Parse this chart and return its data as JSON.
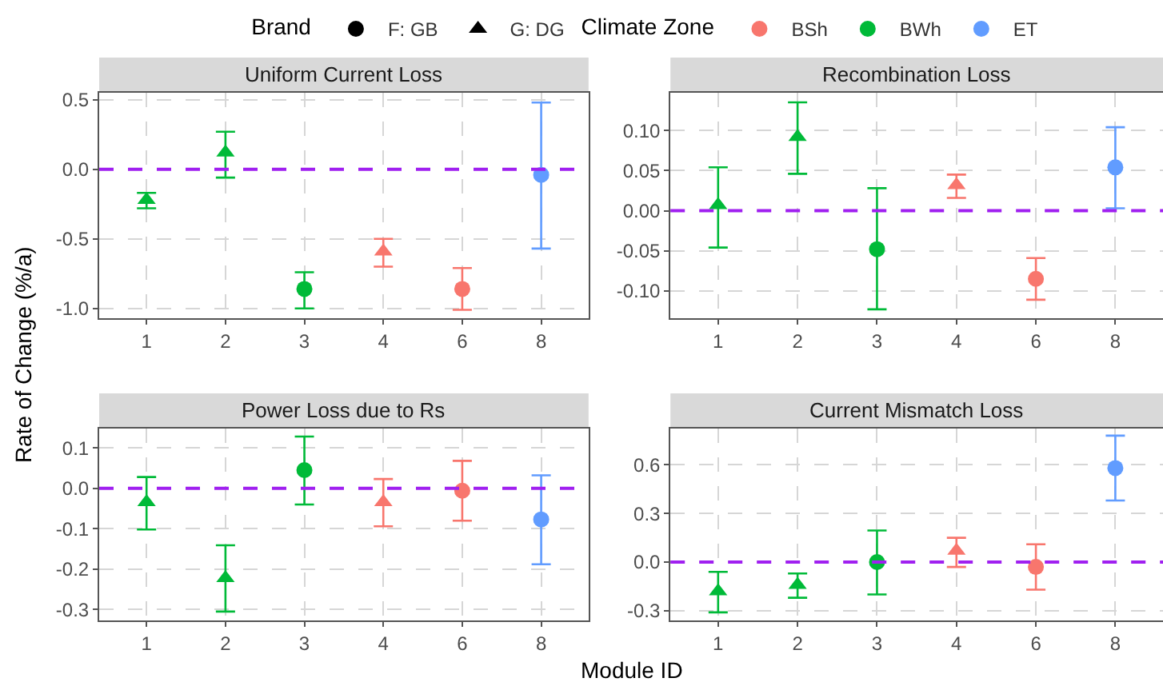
{
  "chart_data": [
    {
      "type": "scatter",
      "title": "Uniform Current Loss",
      "ylabel": "Rate of Change (%/a)",
      "categories": [
        "1",
        "2",
        "3",
        "4",
        "6",
        "8"
      ],
      "ylim": [
        -1.07,
        0.55
      ],
      "yticks": [
        {
          "value": -1,
          "label": "-1.0"
        },
        {
          "value": -0.5,
          "label": "-0.5"
        },
        {
          "value": 0,
          "label": "0.0"
        },
        {
          "value": 0.5,
          "label": "0.5"
        }
      ],
      "grid": true,
      "legend": "top",
      "legend_title": "Brand",
      "ref_lines": [
        {
          "axis": "y",
          "value": 0,
          "color": "#a020f0",
          "line_style": "dashed"
        }
      ],
      "series": [
        {
          "color": "#f8766d",
          "marker": "circle",
          "values": [
            null,
            null,
            null,
            null,
            -0.86,
            null
          ],
          "errors": [
            null,
            null,
            null,
            null,
            [
              -1.01,
              -0.71
            ],
            null
          ]
        },
        {
          "color": "#f8766d",
          "marker": "triangle",
          "values": [
            null,
            null,
            null,
            -0.59,
            null,
            null
          ],
          "errors": [
            null,
            null,
            null,
            [
              -0.7,
              -0.5
            ],
            null,
            null
          ]
        },
        {
          "color": "#00ba38",
          "marker": "circle",
          "values": [
            null,
            null,
            -0.86,
            null,
            null,
            null
          ],
          "errors": [
            null,
            null,
            [
              -1.0,
              -0.74
            ],
            null,
            null,
            null
          ]
        },
        {
          "color": "#00ba38",
          "marker": "triangle",
          "values": [
            -0.22,
            0.12,
            null,
            null,
            null,
            null
          ],
          "errors": [
            [
              -0.28,
              -0.17
            ],
            [
              -0.06,
              0.27
            ],
            null,
            null,
            null,
            null
          ]
        },
        {
          "color": "#619cff",
          "marker": "circle",
          "values": [
            null,
            null,
            null,
            null,
            null,
            -0.04
          ],
          "errors": [
            null,
            null,
            null,
            null,
            null,
            [
              -0.57,
              0.48
            ]
          ]
        },
        {
          "name": "F: GB",
          "color": "#000000",
          "marker": "circle",
          "values": [
            null,
            null,
            null,
            null,
            null,
            null
          ]
        },
        {
          "name": "G: DG",
          "color": "#000000",
          "marker": "triangle",
          "values": [
            null,
            null,
            null,
            null,
            null,
            null
          ]
        }
      ]
    },
    {
      "type": "scatter",
      "title": "Recombination Loss",
      "categories": [
        "1",
        "2",
        "3",
        "4",
        "6",
        "8"
      ],
      "ylim": [
        -0.134,
        0.147
      ],
      "yticks": [
        {
          "value": -0.1,
          "label": "-0.10"
        },
        {
          "value": -0.05,
          "label": "-0.05"
        },
        {
          "value": 0,
          "label": "0.00"
        },
        {
          "value": 0.05,
          "label": "0.05"
        },
        {
          "value": 0.1,
          "label": "0.10"
        }
      ],
      "grid": true,
      "legend": "top",
      "legend_title": "Climate Zone",
      "ref_lines": [
        {
          "axis": "y",
          "value": 0,
          "color": "#a020f0",
          "line_style": "dashed"
        }
      ],
      "series": [
        {
          "name": "BSh",
          "color": "#f8766d",
          "marker": "circle",
          "values": [
            null,
            null,
            null,
            null,
            -0.085,
            null
          ],
          "errors": [
            null,
            null,
            null,
            null,
            [
              -0.111,
              -0.059
            ],
            null
          ]
        },
        {
          "color": "#f8766d",
          "marker": "triangle",
          "values": [
            null,
            null,
            null,
            0.032,
            null,
            null
          ],
          "errors": [
            null,
            null,
            null,
            [
              0.016,
              0.045
            ],
            null,
            null
          ]
        },
        {
          "name": "BWh",
          "color": "#00ba38",
          "marker": "circle",
          "values": [
            null,
            null,
            -0.048,
            null,
            null,
            null
          ],
          "errors": [
            null,
            null,
            [
              -0.123,
              0.028
            ],
            null,
            null,
            null
          ]
        },
        {
          "color": "#00ba38",
          "marker": "triangle",
          "values": [
            0.007,
            0.092,
            null,
            null,
            null,
            null
          ],
          "errors": [
            [
              -0.046,
              0.054
            ],
            [
              0.046,
              0.135
            ],
            null,
            null,
            null,
            null
          ]
        },
        {
          "name": "ET",
          "color": "#619cff",
          "marker": "circle",
          "values": [
            null,
            null,
            null,
            null,
            null,
            0.054
          ],
          "errors": [
            null,
            null,
            null,
            null,
            null,
            [
              0.003,
              0.104
            ]
          ]
        }
      ]
    },
    {
      "type": "scatter",
      "title": "Power Loss due to Rs",
      "xlabel": "Module ID",
      "categories": [
        "1",
        "2",
        "3",
        "4",
        "6",
        "8"
      ],
      "ylim": [
        -0.327,
        0.148
      ],
      "yticks": [
        -0.3,
        -0.2,
        -0.1,
        {
          "value": 0,
          "label": "0.0"
        },
        0.1
      ],
      "grid": true,
      "ref_lines": [
        {
          "axis": "y",
          "value": 0,
          "color": "#a020f0",
          "line_style": "dashed"
        }
      ],
      "series": [
        {
          "color": "#f8766d",
          "marker": "circle",
          "values": [
            null,
            null,
            null,
            null,
            -0.006,
            null
          ],
          "errors": [
            null,
            null,
            null,
            null,
            [
              -0.08,
              0.068
            ],
            null
          ]
        },
        {
          "color": "#f8766d",
          "marker": "triangle",
          "values": [
            null,
            null,
            null,
            -0.034,
            null,
            null
          ],
          "errors": [
            null,
            null,
            null,
            [
              -0.094,
              0.023
            ],
            null,
            null
          ]
        },
        {
          "color": "#00ba38",
          "marker": "circle",
          "values": [
            null,
            null,
            0.045,
            null,
            null,
            null
          ],
          "errors": [
            null,
            null,
            [
              -0.04,
              0.128
            ],
            null,
            null,
            null
          ]
        },
        {
          "color": "#00ba38",
          "marker": "triangle",
          "values": [
            -0.034,
            -0.222,
            null,
            null,
            null,
            null
          ],
          "errors": [
            [
              -0.102,
              0.028
            ],
            [
              -0.305,
              -0.141
            ],
            null,
            null,
            null,
            null
          ]
        },
        {
          "color": "#619cff",
          "marker": "circle",
          "values": [
            null,
            null,
            null,
            null,
            null,
            -0.077
          ],
          "errors": [
            null,
            null,
            null,
            null,
            null,
            [
              -0.188,
              0.032
            ]
          ]
        }
      ]
    },
    {
      "type": "scatter",
      "title": "Current Mismatch Loss",
      "categories": [
        "1",
        "2",
        "3",
        "4",
        "6",
        "8"
      ],
      "ylim": [
        -0.36,
        0.824
      ],
      "yticks": [
        -0.3,
        {
          "value": 0,
          "label": "0.0"
        },
        0.3,
        0.6
      ],
      "grid": true,
      "ref_lines": [
        {
          "axis": "y",
          "value": 0,
          "color": "#a020f0",
          "line_style": "dashed"
        }
      ],
      "series": [
        {
          "color": "#f8766d",
          "marker": "circle",
          "values": [
            null,
            null,
            null,
            null,
            -0.03,
            null
          ],
          "errors": [
            null,
            null,
            null,
            null,
            [
              -0.17,
              0.11
            ],
            null
          ]
        },
        {
          "color": "#f8766d",
          "marker": "triangle",
          "values": [
            null,
            null,
            null,
            0.07,
            null,
            null
          ],
          "errors": [
            null,
            null,
            null,
            [
              -0.03,
              0.15
            ],
            null,
            null
          ]
        },
        {
          "color": "#00ba38",
          "marker": "circle",
          "values": [
            null,
            null,
            0.0,
            null,
            null,
            null
          ],
          "errors": [
            null,
            null,
            [
              -0.2,
              0.195
            ],
            null,
            null,
            null
          ]
        },
        {
          "color": "#00ba38",
          "marker": "triangle",
          "values": [
            -0.18,
            -0.14,
            null,
            null,
            null,
            null
          ],
          "errors": [
            [
              -0.31,
              -0.06
            ],
            [
              -0.22,
              -0.07
            ],
            null,
            null,
            null,
            null
          ]
        },
        {
          "color": "#619cff",
          "marker": "circle",
          "values": [
            null,
            null,
            null,
            null,
            null,
            0.58
          ],
          "errors": [
            null,
            null,
            null,
            null,
            null,
            [
              0.38,
              0.78
            ]
          ]
        }
      ]
    }
  ]
}
